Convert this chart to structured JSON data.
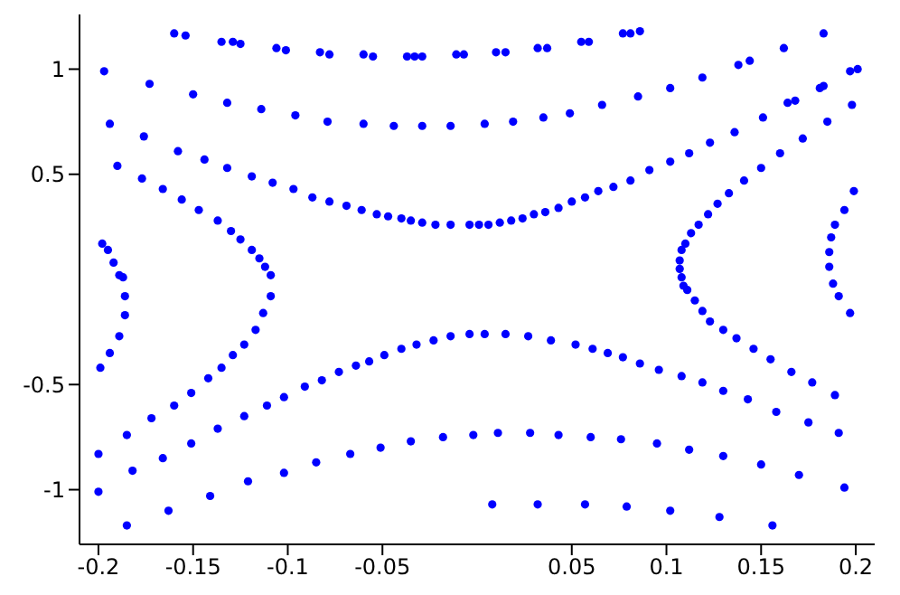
{
  "chart_data": {
    "type": "scatter",
    "xlim": [
      -0.21,
      0.21
    ],
    "ylim": [
      -1.26,
      1.26
    ],
    "xticks": [
      -0.2,
      -0.15,
      -0.1,
      -0.05,
      0.05,
      0.1,
      0.15,
      0.2
    ],
    "yticks": [
      -1,
      -0.5,
      0.5,
      1
    ],
    "grid": false,
    "legend": false,
    "marker": "circle",
    "series": [
      {
        "color": "#0000ff",
        "x": [
          -0.16,
          -0.154,
          -0.135,
          -0.129,
          -0.125,
          -0.106,
          -0.101,
          -0.083,
          -0.078,
          -0.06,
          -0.055,
          -0.037,
          -0.033,
          -0.029,
          -0.011,
          -0.007,
          0.01,
          0.015,
          0.032,
          0.037,
          0.055,
          0.059,
          0.077,
          0.081,
          0.086,
          -0.197,
          -0.173,
          -0.15,
          -0.132,
          -0.114,
          -0.096,
          -0.079,
          -0.06,
          -0.044,
          -0.029,
          -0.014,
          0.004,
          0.019,
          0.035,
          0.049,
          0.066,
          0.085,
          0.102,
          0.119,
          0.138,
          0.144,
          0.162,
          0.183,
          0.197,
          0.201,
          0.181,
          0.183,
          0.164,
          0.168,
          0.151,
          0.136,
          0.123,
          0.112,
          0.102,
          0.091,
          0.081,
          0.072,
          0.064,
          0.057,
          0.05,
          0.043,
          0.036,
          0.03,
          0.024,
          0.018,
          0.012,
          0.006,
          0.001,
          0.198,
          0.185,
          0.172,
          0.16,
          0.15,
          0.141,
          0.133,
          0.127,
          0.122,
          0.117,
          0.113,
          0.11,
          0.108,
          0.107,
          0.107,
          0.108,
          0.109,
          0.111,
          0.115,
          0.119,
          0.123,
          0.13,
          0.137,
          0.146,
          0.155,
          0.166,
          0.177,
          0.189,
          0.199,
          0.194,
          0.189,
          0.187,
          0.186,
          0.186,
          0.188,
          0.191,
          0.197,
          0.004,
          0.015,
          0.027,
          0.039,
          0.052,
          0.061,
          0.069,
          0.077,
          0.086,
          0.096,
          0.108,
          0.119,
          0.13,
          0.143,
          0.158,
          0.175,
          0.191,
          -0.2,
          -0.182,
          -0.166,
          -0.151,
          -0.137,
          -0.123,
          -0.111,
          -0.102,
          -0.091,
          -0.082,
          -0.073,
          -0.064,
          -0.057,
          -0.049,
          -0.04,
          -0.032,
          -0.023,
          -0.014,
          -0.004,
          -0.185,
          -0.163,
          -0.141,
          -0.121,
          -0.102,
          -0.085,
          -0.067,
          -0.051,
          -0.035,
          -0.018,
          -0.002,
          0.011,
          0.028,
          0.043,
          0.06,
          0.076,
          0.095,
          0.112,
          0.13,
          0.15,
          0.17,
          0.194,
          0.008,
          0.032,
          0.057,
          0.079,
          0.102,
          0.128,
          0.156,
          -0.109,
          -0.113,
          -0.117,
          -0.123,
          -0.129,
          -0.135,
          -0.142,
          -0.151,
          -0.16,
          -0.172,
          -0.185,
          -0.2,
          -0.19,
          -0.177,
          -0.166,
          -0.156,
          -0.147,
          -0.137,
          -0.13,
          -0.125,
          -0.119,
          -0.115,
          -0.112,
          -0.109,
          -0.198,
          -0.195,
          -0.192,
          -0.189,
          -0.187,
          -0.186,
          -0.186,
          -0.189,
          -0.194,
          -0.199,
          -0.004,
          -0.014,
          -0.022,
          -0.029,
          -0.035,
          -0.04,
          -0.047,
          -0.053,
          -0.061,
          -0.069,
          -0.078,
          -0.087,
          -0.097,
          -0.108,
          -0.119,
          -0.132,
          -0.144,
          -0.158,
          -0.176,
          -0.194
        ],
        "values": [
          1.17,
          1.16,
          1.13,
          1.13,
          1.12,
          1.1,
          1.09,
          1.08,
          1.07,
          1.07,
          1.06,
          1.06,
          1.06,
          1.06,
          1.07,
          1.07,
          1.08,
          1.08,
          1.1,
          1.1,
          1.13,
          1.13,
          1.17,
          1.17,
          1.18,
          0.99,
          0.93,
          0.88,
          0.84,
          0.81,
          0.78,
          0.75,
          0.74,
          0.73,
          0.73,
          0.73,
          0.74,
          0.75,
          0.77,
          0.79,
          0.83,
          0.87,
          0.91,
          0.96,
          1.02,
          1.04,
          1.1,
          1.17,
          0.99,
          1.0,
          0.91,
          0.92,
          0.84,
          0.85,
          0.77,
          0.7,
          0.65,
          0.6,
          0.56,
          0.52,
          0.47,
          0.44,
          0.42,
          0.39,
          0.37,
          0.34,
          0.32,
          0.31,
          0.29,
          0.28,
          0.27,
          0.26,
          0.26,
          0.83,
          0.75,
          0.67,
          0.6,
          0.53,
          0.47,
          0.41,
          0.36,
          0.31,
          0.26,
          0.22,
          0.17,
          0.14,
          0.09,
          0.05,
          0.01,
          -0.03,
          -0.05,
          -0.1,
          -0.15,
          -0.2,
          -0.24,
          -0.28,
          -0.33,
          -0.38,
          -0.44,
          -0.49,
          -0.55,
          0.42,
          0.33,
          0.26,
          0.2,
          0.13,
          0.06,
          -0.02,
          -0.08,
          -0.16,
          -0.26,
          -0.26,
          -0.27,
          -0.29,
          -0.31,
          -0.33,
          -0.35,
          -0.37,
          -0.4,
          -0.43,
          -0.46,
          -0.49,
          -0.53,
          -0.57,
          -0.63,
          -0.68,
          -0.73,
          -1.01,
          -0.91,
          -0.85,
          -0.78,
          -0.71,
          -0.65,
          -0.6,
          -0.56,
          -0.51,
          -0.48,
          -0.44,
          -0.41,
          -0.39,
          -0.36,
          -0.33,
          -0.31,
          -0.29,
          -0.27,
          -0.26,
          -1.17,
          -1.1,
          -1.03,
          -0.96,
          -0.92,
          -0.87,
          -0.83,
          -0.8,
          -0.77,
          -0.75,
          -0.74,
          -0.73,
          -0.73,
          -0.74,
          -0.75,
          -0.76,
          -0.78,
          -0.81,
          -0.84,
          -0.88,
          -0.93,
          -0.99,
          -1.07,
          -1.07,
          -1.07,
          -1.08,
          -1.1,
          -1.13,
          -1.17,
          -0.08,
          -0.16,
          -0.24,
          -0.31,
          -0.36,
          -0.42,
          -0.47,
          -0.54,
          -0.6,
          -0.66,
          -0.74,
          -0.83,
          0.54,
          0.48,
          0.43,
          0.38,
          0.33,
          0.28,
          0.23,
          0.19,
          0.14,
          0.1,
          0.06,
          0.02,
          0.17,
          0.14,
          0.08,
          0.02,
          0.01,
          -0.08,
          -0.17,
          -0.27,
          -0.35,
          -0.42,
          0.26,
          0.26,
          0.26,
          0.27,
          0.28,
          0.29,
          0.3,
          0.31,
          0.33,
          0.35,
          0.37,
          0.39,
          0.43,
          0.46,
          0.49,
          0.53,
          0.57,
          0.61,
          0.68,
          0.74
        ]
      }
    ]
  }
}
